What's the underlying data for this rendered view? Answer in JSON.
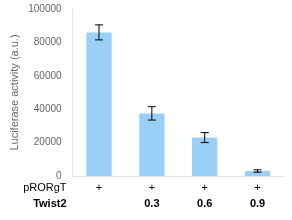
{
  "chart_data": {
    "type": "bar",
    "categories": [
      null,
      "0.3",
      "0.6",
      "0.9"
    ],
    "xlabel": "Twist2",
    "values": [
      86000,
      37500,
      23000,
      3000
    ],
    "errors": [
      4500,
      4000,
      3000,
      700
    ],
    "ylabel": "Luciferase activity (a.u.)",
    "ylim": [
      0,
      100000
    ],
    "yticks": [
      0,
      20000,
      40000,
      60000,
      80000,
      100000
    ],
    "grid": false,
    "annotations": [
      {
        "text": "pRORgT",
        "row": [
          "+",
          "+",
          "+",
          "+"
        ]
      }
    ]
  }
}
